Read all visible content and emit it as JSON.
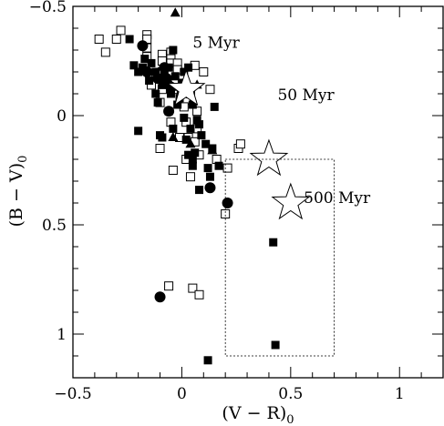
{
  "chart_data": {
    "type": "scatter",
    "xlabel": "(V − R)",
    "xlabel_sub": "0",
    "ylabel": "(B − V)",
    "ylabel_sub": "0",
    "xlim": [
      -0.5,
      1.2
    ],
    "ylim": [
      1.2,
      -0.5
    ],
    "y_inverted": true,
    "grid": false,
    "x_ticks": [
      {
        "value": -0.5,
        "label": "−0.5"
      },
      {
        "value": 0,
        "label": "0"
      },
      {
        "value": 0.5,
        "label": "0.5"
      },
      {
        "value": 1,
        "label": "1"
      }
    ],
    "y_ticks": [
      {
        "value": -0.5,
        "label": "−0.5"
      },
      {
        "value": 0,
        "label": "0"
      },
      {
        "value": 0.5,
        "label": "0.5"
      },
      {
        "value": 1,
        "label": "1"
      }
    ],
    "annotations": [
      {
        "text": "5 Myr",
        "x": 0.05,
        "y": -0.31
      },
      {
        "text": "50 Myr",
        "x": 0.44,
        "y": -0.07
      },
      {
        "text": "500 Myr",
        "x": 0.56,
        "y": 0.4
      }
    ],
    "model_points": [
      {
        "age": "5 Myr",
        "x": 0.02,
        "y": -0.12
      },
      {
        "age": "50 Myr",
        "x": 0.4,
        "y": 0.2
      },
      {
        "age": "500 Myr",
        "x": 0.5,
        "y": 0.4
      }
    ],
    "selection_box": {
      "x": [
        0.2,
        0.7
      ],
      "y": [
        0.2,
        1.1
      ]
    },
    "series": [
      {
        "marker": "open-square",
        "points": [
          [
            -0.38,
            -0.35
          ],
          [
            -0.3,
            -0.35
          ],
          [
            -0.28,
            -0.39
          ],
          [
            -0.35,
            -0.29
          ],
          [
            -0.16,
            -0.37
          ],
          [
            -0.16,
            -0.35
          ],
          [
            -0.16,
            -0.31
          ],
          [
            -0.16,
            -0.27
          ],
          [
            -0.09,
            -0.28
          ],
          [
            -0.09,
            -0.25
          ],
          [
            -0.05,
            -0.29
          ],
          [
            -0.05,
            -0.26
          ],
          [
            -0.05,
            -0.24
          ],
          [
            -0.02,
            -0.24
          ],
          [
            -0.02,
            -0.21
          ],
          [
            -0.09,
            -0.2
          ],
          [
            -0.12,
            -0.17
          ],
          [
            -0.14,
            -0.14
          ],
          [
            -0.09,
            -0.12
          ],
          [
            -0.04,
            -0.12
          ],
          [
            0.0,
            -0.1
          ],
          [
            0.02,
            -0.07
          ],
          [
            0.04,
            -0.1
          ],
          [
            0.01,
            -0.04
          ],
          [
            -0.1,
            -0.06
          ],
          [
            -0.05,
            0.03
          ],
          [
            0.02,
            0.03
          ],
          [
            0.07,
            -0.02
          ],
          [
            0.13,
            -0.12
          ],
          [
            0.1,
            -0.2
          ],
          [
            0.06,
            -0.23
          ],
          [
            0.07,
            0.06
          ],
          [
            -0.01,
            0.1
          ],
          [
            -0.1,
            0.15
          ],
          [
            0.03,
            0.1
          ],
          [
            0.06,
            0.12
          ],
          [
            0.08,
            0.18
          ],
          [
            0.02,
            0.2
          ],
          [
            -0.04,
            0.25
          ],
          [
            0.04,
            0.28
          ],
          [
            0.16,
            0.2
          ],
          [
            0.21,
            0.24
          ],
          [
            0.26,
            0.15
          ],
          [
            0.27,
            0.13
          ],
          [
            0.2,
            0.45
          ],
          [
            -0.06,
            0.78
          ],
          [
            0.05,
            0.79
          ],
          [
            0.08,
            0.82
          ]
        ]
      },
      {
        "marker": "filled-square",
        "points": [
          [
            -0.24,
            -0.35
          ],
          [
            -0.22,
            -0.23
          ],
          [
            -0.2,
            -0.2
          ],
          [
            -0.18,
            -0.22
          ],
          [
            -0.17,
            -0.26
          ],
          [
            -0.15,
            -0.16
          ],
          [
            -0.14,
            -0.24
          ],
          [
            -0.12,
            -0.2
          ],
          [
            -0.12,
            -0.1
          ],
          [
            -0.11,
            -0.06
          ],
          [
            -0.09,
            -0.14
          ],
          [
            -0.08,
            -0.2
          ],
          [
            -0.07,
            -0.15
          ],
          [
            -0.06,
            -0.22
          ],
          [
            -0.05,
            -0.1
          ],
          [
            -0.04,
            -0.3
          ],
          [
            -0.03,
            -0.18
          ],
          [
            -0.02,
            -0.05
          ],
          [
            -0.01,
            -0.08
          ],
          [
            0.0,
            -0.15
          ],
          [
            0.01,
            -0.2
          ],
          [
            0.03,
            -0.22
          ],
          [
            -0.06,
            -0.02
          ],
          [
            -0.04,
            0.06
          ],
          [
            -0.1,
            0.09
          ],
          [
            -0.09,
            0.1
          ],
          [
            0.01,
            0.01
          ],
          [
            0.04,
            0.06
          ],
          [
            0.05,
            -0.05
          ],
          [
            0.07,
            0.02
          ],
          [
            0.08,
            0.04
          ],
          [
            0.09,
            0.09
          ],
          [
            0.02,
            0.11
          ],
          [
            0.03,
            0.18
          ],
          [
            0.06,
            0.17
          ],
          [
            0.05,
            0.2
          ],
          [
            0.05,
            0.23
          ],
          [
            0.11,
            0.13
          ],
          [
            0.14,
            0.15
          ],
          [
            0.12,
            0.24
          ],
          [
            0.13,
            0.28
          ],
          [
            0.17,
            0.23
          ],
          [
            0.08,
            0.34
          ],
          [
            0.15,
            -0.04
          ],
          [
            -0.2,
            0.07
          ],
          [
            0.42,
            0.58
          ],
          [
            0.43,
            1.05
          ],
          [
            0.12,
            1.12
          ]
        ]
      },
      {
        "marker": "filled-circle",
        "points": [
          [
            -0.18,
            -0.32
          ],
          [
            -0.16,
            -0.2
          ],
          [
            -0.11,
            -0.17
          ],
          [
            -0.08,
            -0.22
          ],
          [
            -0.07,
            -0.17
          ],
          [
            -0.05,
            -0.13
          ],
          [
            -0.06,
            -0.02
          ],
          [
            0.01,
            -0.12
          ],
          [
            0.13,
            0.33
          ],
          [
            0.21,
            0.4
          ],
          [
            -0.1,
            0.83
          ]
        ]
      },
      {
        "marker": "filled-triangle",
        "points": [
          [
            -0.03,
            -0.47
          ],
          [
            -0.06,
            -0.16
          ],
          [
            -0.04,
            -0.13
          ],
          [
            -0.04,
            0.1
          ],
          [
            0.07,
            -0.14
          ],
          [
            0.04,
            0.13
          ],
          [
            0.14,
            0.16
          ]
        ]
      }
    ]
  }
}
